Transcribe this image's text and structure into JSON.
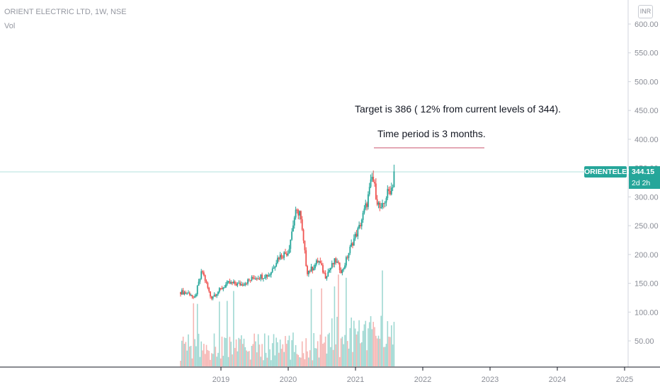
{
  "header": {
    "symbol_line": "ORIENT ELECTRIC LTD, 1W, NSE",
    "volume_label": "Vol",
    "currency": "INR"
  },
  "annotations": {
    "target": "Target is 386 ( 12% from current levels of 344).",
    "period": "Time period is 3 months."
  },
  "price_tag": {
    "ticker": "ORIENTELEC",
    "last_price": "344.15",
    "countdown": "2d 2h"
  },
  "colors": {
    "up": "#26a69a",
    "down": "#ef5350",
    "vol_up": "#9fd8d2",
    "vol_down": "#f5b5b3",
    "axis": "#d1d4dc",
    "text_axis": "#8a8d96",
    "price_line": "#26a69a",
    "note_underline": "#c8506b"
  },
  "chart_data": {
    "type": "candlestick",
    "timeframe": "1W",
    "y_axis_ticks": [
      "50.00",
      "100.00",
      "150.00",
      "200.00",
      "250.00",
      "300.00",
      "350.00",
      "400.00",
      "450.00",
      "500.00",
      "550.00",
      "600.00"
    ],
    "x_axis_ticks": [
      "2019",
      "2020",
      "2021",
      "2022",
      "2023",
      "2024",
      "2025"
    ],
    "last_price": 344.15,
    "price_path": [
      {
        "x": 2018.4,
        "y": 135
      },
      {
        "x": 2018.55,
        "y": 132
      },
      {
        "x": 2018.6,
        "y": 120
      },
      {
        "x": 2018.72,
        "y": 172
      },
      {
        "x": 2018.85,
        "y": 125
      },
      {
        "x": 2019.1,
        "y": 150
      },
      {
        "x": 2019.3,
        "y": 148
      },
      {
        "x": 2019.5,
        "y": 160
      },
      {
        "x": 2019.72,
        "y": 165
      },
      {
        "x": 2019.85,
        "y": 195
      },
      {
        "x": 2020.0,
        "y": 205
      },
      {
        "x": 2020.1,
        "y": 270
      },
      {
        "x": 2020.17,
        "y": 275
      },
      {
        "x": 2020.28,
        "y": 170
      },
      {
        "x": 2020.35,
        "y": 175
      },
      {
        "x": 2020.45,
        "y": 190
      },
      {
        "x": 2020.55,
        "y": 162
      },
      {
        "x": 2020.7,
        "y": 190
      },
      {
        "x": 2020.8,
        "y": 170
      },
      {
        "x": 2020.95,
        "y": 220
      },
      {
        "x": 2021.05,
        "y": 245
      },
      {
        "x": 2021.17,
        "y": 290
      },
      {
        "x": 2021.25,
        "y": 335
      },
      {
        "x": 2021.33,
        "y": 290
      },
      {
        "x": 2021.38,
        "y": 275
      },
      {
        "x": 2021.47,
        "y": 305
      },
      {
        "x": 2021.55,
        "y": 318
      },
      {
        "x": 2021.57,
        "y": 344
      }
    ]
  }
}
